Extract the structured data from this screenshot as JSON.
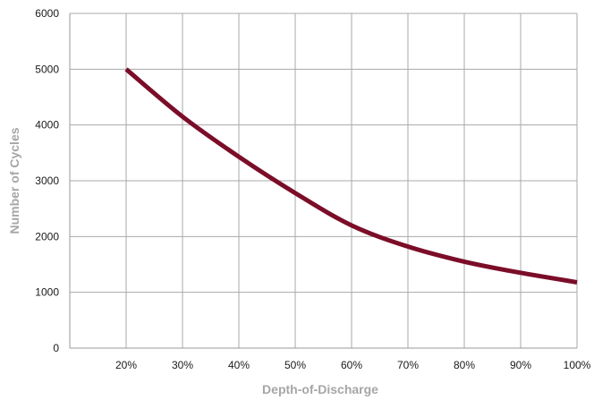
{
  "chart_data": {
    "type": "line",
    "title": "",
    "xlabel": "Depth-of-Discharge",
    "ylabel": "Number of Cycles",
    "x_ticks": [
      "20%",
      "30%",
      "40%",
      "50%",
      "60%",
      "70%",
      "80%",
      "90%",
      "100%"
    ],
    "y_ticks": [
      "0",
      "1000",
      "2000",
      "3000",
      "4000",
      "5000",
      "6000"
    ],
    "xlim": [
      10,
      100
    ],
    "ylim": [
      0,
      6000
    ],
    "grid": true,
    "legend": "none",
    "series": [
      {
        "color": "#7b0d28",
        "x": [
          20,
          30,
          40,
          50,
          60,
          70,
          80,
          90,
          100
        ],
        "values": [
          5000,
          4150,
          3430,
          2780,
          2200,
          1820,
          1550,
          1350,
          1180
        ]
      }
    ]
  }
}
